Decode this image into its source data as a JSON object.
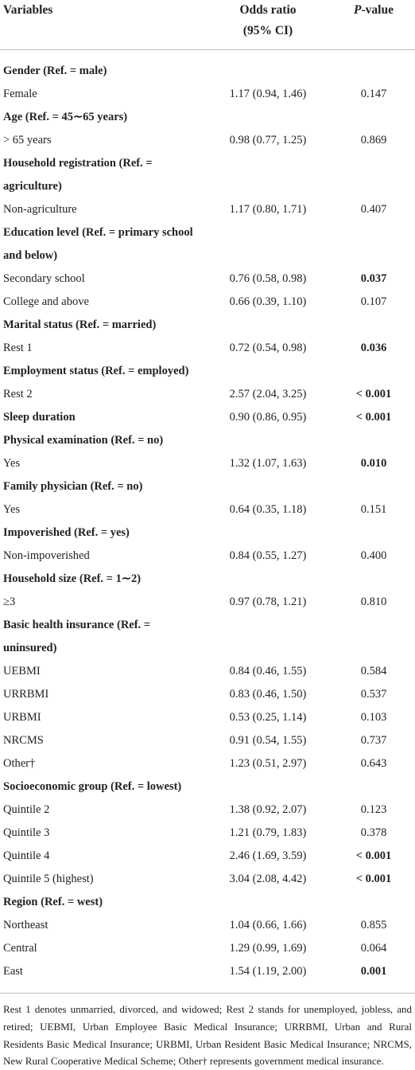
{
  "table": {
    "header": {
      "variables": "Variables",
      "odds_ratio": [
        "Odds ratio",
        "(95% CI)"
      ],
      "p_value": {
        "italic": "P",
        "rest": "-value"
      }
    },
    "rows": [
      {
        "group": [
          "Gender (Ref. = male)"
        ]
      },
      {
        "label": "Female",
        "or": "1.17 (0.94, 1.46)",
        "p": "0.147"
      },
      {
        "group": [
          "Age (Ref. = 45∼65 years)"
        ]
      },
      {
        "label": "> 65 years",
        "or": "0.98 (0.77, 1.25)",
        "p": "0.869"
      },
      {
        "group": [
          "Household registration (Ref. =",
          "agriculture)"
        ]
      },
      {
        "label": "Non-agriculture",
        "or": "1.17 (0.80, 1.71)",
        "p": "0.407"
      },
      {
        "group": [
          "Education level (Ref. = primary school",
          "and below)"
        ]
      },
      {
        "label": "Secondary school",
        "or": "0.76 (0.58, 0.98)",
        "p": "0.037",
        "bold_p": true
      },
      {
        "label": "College and above",
        "or": "0.66 (0.39, 1.10)",
        "p": "0.107"
      },
      {
        "group": [
          "Marital status (Ref. = married)"
        ]
      },
      {
        "label": "Rest 1",
        "or": "0.72 (0.54, 0.98)",
        "p": "0.036",
        "bold_p": true
      },
      {
        "group": [
          "Employment status (Ref. = employed)"
        ]
      },
      {
        "label": "Rest 2",
        "or": "2.57 (2.04, 3.25)",
        "p": "< 0.001",
        "bold_p": true
      },
      {
        "label": "Sleep duration",
        "or": "0.90 (0.86, 0.95)",
        "p": "< 0.001",
        "bold_p": true,
        "bold_label": true
      },
      {
        "group": [
          "Physical examination (Ref. = no)"
        ]
      },
      {
        "label": "Yes",
        "or": "1.32 (1.07, 1.63)",
        "p": "0.010",
        "bold_p": true
      },
      {
        "group": [
          "Family physician (Ref. = no)"
        ]
      },
      {
        "label": "Yes",
        "or": "0.64 (0.35, 1.18)",
        "p": "0.151"
      },
      {
        "group": [
          "Impoverished (Ref. = yes)"
        ]
      },
      {
        "label": "Non-impoverished",
        "or": "0.84 (0.55, 1.27)",
        "p": "0.400"
      },
      {
        "group": [
          "Household size (Ref. = 1∼2)"
        ]
      },
      {
        "label": "≥3",
        "or": "0.97 (0.78, 1.21)",
        "p": "0.810"
      },
      {
        "group": [
          "Basic health insurance (Ref. =",
          "uninsured)"
        ]
      },
      {
        "label": "UEBMI",
        "or": "0.84 (0.46, 1.55)",
        "p": "0.584"
      },
      {
        "label": "URRBMI",
        "or": "0.83 (0.46, 1.50)",
        "p": "0.537"
      },
      {
        "label": "URBMI",
        "or": "0.53 (0.25, 1.14)",
        "p": "0.103"
      },
      {
        "label": "NRCMS",
        "or": "0.91 (0.54, 1.55)",
        "p": "0.737"
      },
      {
        "label": "Other†",
        "or": "1.23 (0.51, 2.97)",
        "p": "0.643"
      },
      {
        "group": [
          "Socioeconomic group (Ref. = lowest)"
        ]
      },
      {
        "label": "Quintile 2",
        "or": "1.38 (0.92, 2.07)",
        "p": "0.123"
      },
      {
        "label": "Quintile 3",
        "or": "1.21 (0.79, 1.83)",
        "p": "0.378"
      },
      {
        "label": "Quintile 4",
        "or": "2.46 (1.69, 3.59)",
        "p": "< 0.001",
        "bold_p": true
      },
      {
        "label": "Quintile 5 (highest)",
        "or": "3.04 (2.08, 4.42)",
        "p": "< 0.001",
        "bold_p": true
      },
      {
        "group": [
          "Region (Ref. = west)"
        ]
      },
      {
        "label": "Northeast",
        "or": "1.04 (0.66, 1.66)",
        "p": "0.855"
      },
      {
        "label": "Central",
        "or": "1.29 (0.99, 1.69)",
        "p": "0.064"
      },
      {
        "label": "East",
        "or": "1.54 (1.19, 2.00)",
        "p": "0.001",
        "bold_p": true
      }
    ],
    "footnote": "Rest 1 denotes unmarried, divorced, and widowed; Rest 2 stands for unemployed, jobless, and retired; UEBMI, Urban Employee Basic Medical Insurance; URRBMI, Urban and Rural Residents Basic Medical Insurance; URBMI, Urban Resident Basic Medical Insurance; NRCMS, New Rural Cooperative Medical Scheme; Other† represents government medical insurance."
  }
}
